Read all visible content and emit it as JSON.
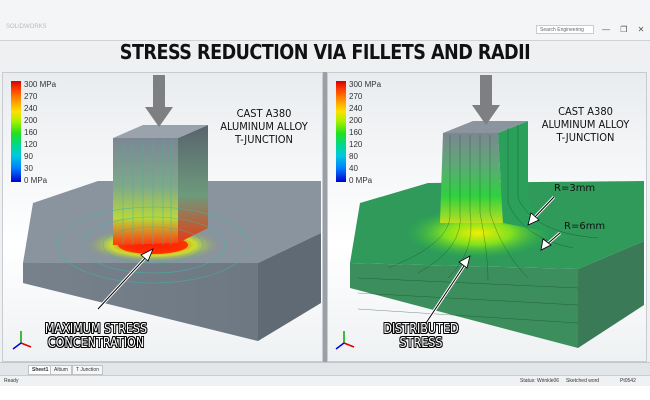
{
  "app": {
    "logo_text": "SOLIDWORKS",
    "search_placeholder": "Search Engineering"
  },
  "title": "STRESS REDUCTION VIA FILLETS AND RADII",
  "legend": {
    "labels": [
      "300 MPa",
      "270",
      "240",
      "200",
      "160",
      "120",
      "90",
      "30",
      "0 MPa"
    ]
  },
  "legend_right": {
    "labels": [
      "300 MPa",
      "270",
      "240",
      "200",
      "160",
      "120",
      "80",
      "40",
      "0 MPa"
    ]
  },
  "left_panel": {
    "material_lines": [
      "CAST A380",
      "ALUMINUM ALLOY",
      "T-JUNCTION"
    ],
    "callout_lines": [
      "MAXIMUM STRESS",
      "CONCENTRATION"
    ]
  },
  "right_panel": {
    "material_lines": [
      "CAST A380",
      "ALUMINUM ALLOY",
      "T-JUNCTION"
    ],
    "callout_lines": [
      "DISTRIBUTED",
      "STRESS"
    ],
    "radius_small": "R=3mm",
    "radius_large": "R=6mm"
  },
  "tabs": [
    "Sheet1",
    "Altium",
    "T Junction"
  ],
  "status": {
    "left": "Ready",
    "state": "Status: Wrinkle06",
    "mode": "Sketched word",
    "coords": "Pt0542"
  },
  "triad_axes": [
    "X",
    "Y",
    "Z"
  ]
}
